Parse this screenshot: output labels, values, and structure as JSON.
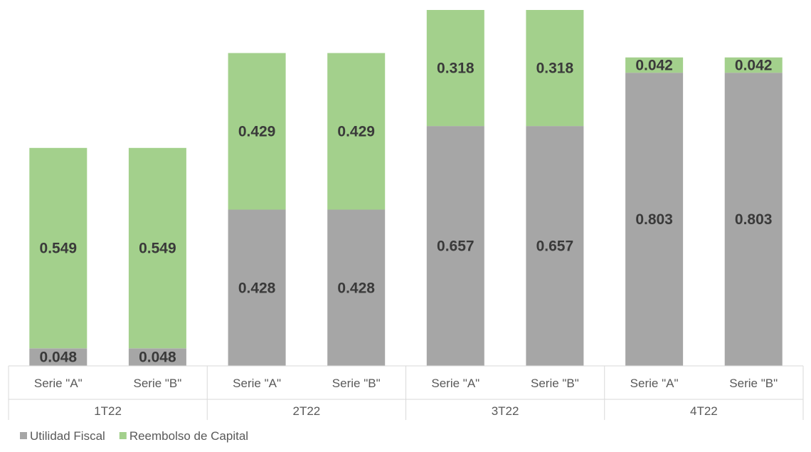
{
  "chart_data": {
    "type": "bar",
    "stacked": true,
    "groups": [
      "1T22",
      "2T22",
      "3T22",
      "4T22"
    ],
    "categories": [
      "Serie \"A\"",
      "Serie \"B\"",
      "Serie \"A\"",
      "Serie \"B\"",
      "Serie \"A\"",
      "Serie \"B\"",
      "Serie \"A\"",
      "Serie \"B\""
    ],
    "series": [
      {
        "name": "Utilidad Fiscal",
        "color": "#a6a6a6",
        "values": [
          0.048,
          0.048,
          0.428,
          0.428,
          0.657,
          0.657,
          0.803,
          0.803
        ]
      },
      {
        "name": "Reembolso de Capital",
        "color": "#a3d08c",
        "values": [
          0.549,
          0.549,
          0.429,
          0.429,
          0.318,
          0.318,
          0.042,
          0.042
        ]
      }
    ],
    "ylim": [
      0,
      0.975
    ],
    "grid": false,
    "legend_position": "bottom-left"
  }
}
